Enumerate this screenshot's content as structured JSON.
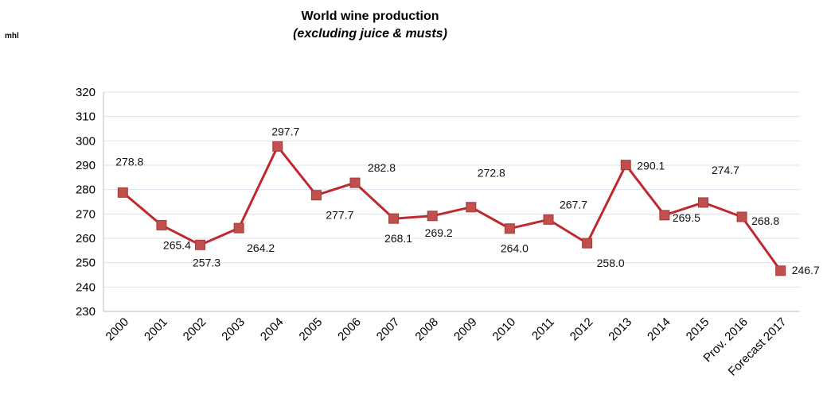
{
  "chart_data": {
    "type": "line",
    "title": "World wine production",
    "subtitle": "(excluding juice & musts)",
    "ylabel": "mhl",
    "xlabel": "",
    "ylim": [
      230,
      320
    ],
    "ytick_step": 10,
    "grid": true,
    "line_color": "#c0282d",
    "marker_color": "#c0504d",
    "grid_color": "#d7e3ef",
    "categories": [
      "2000",
      "2001",
      "2002",
      "2003",
      "2004",
      "2005",
      "2006",
      "2007",
      "2008",
      "2009",
      "2010",
      "2011",
      "2012",
      "2013",
      "2014",
      "2015",
      "Prov. 2016",
      "Forecast 2017"
    ],
    "values": [
      278.8,
      265.4,
      257.3,
      264.2,
      297.7,
      277.7,
      282.8,
      268.1,
      269.2,
      272.8,
      264.0,
      267.7,
      258.0,
      290.1,
      269.5,
      274.7,
      268.8,
      246.7
    ],
    "data_labels": [
      "278.8",
      "265.4",
      "257.3",
      "264.2",
      "297.7",
      "277.7",
      "282.8",
      "268.1",
      "269.2",
      "272.8",
      "264.0",
      "267.7",
      "258.0",
      "290.1",
      "269.5",
      "274.7",
      "268.8",
      "246.7"
    ]
  }
}
